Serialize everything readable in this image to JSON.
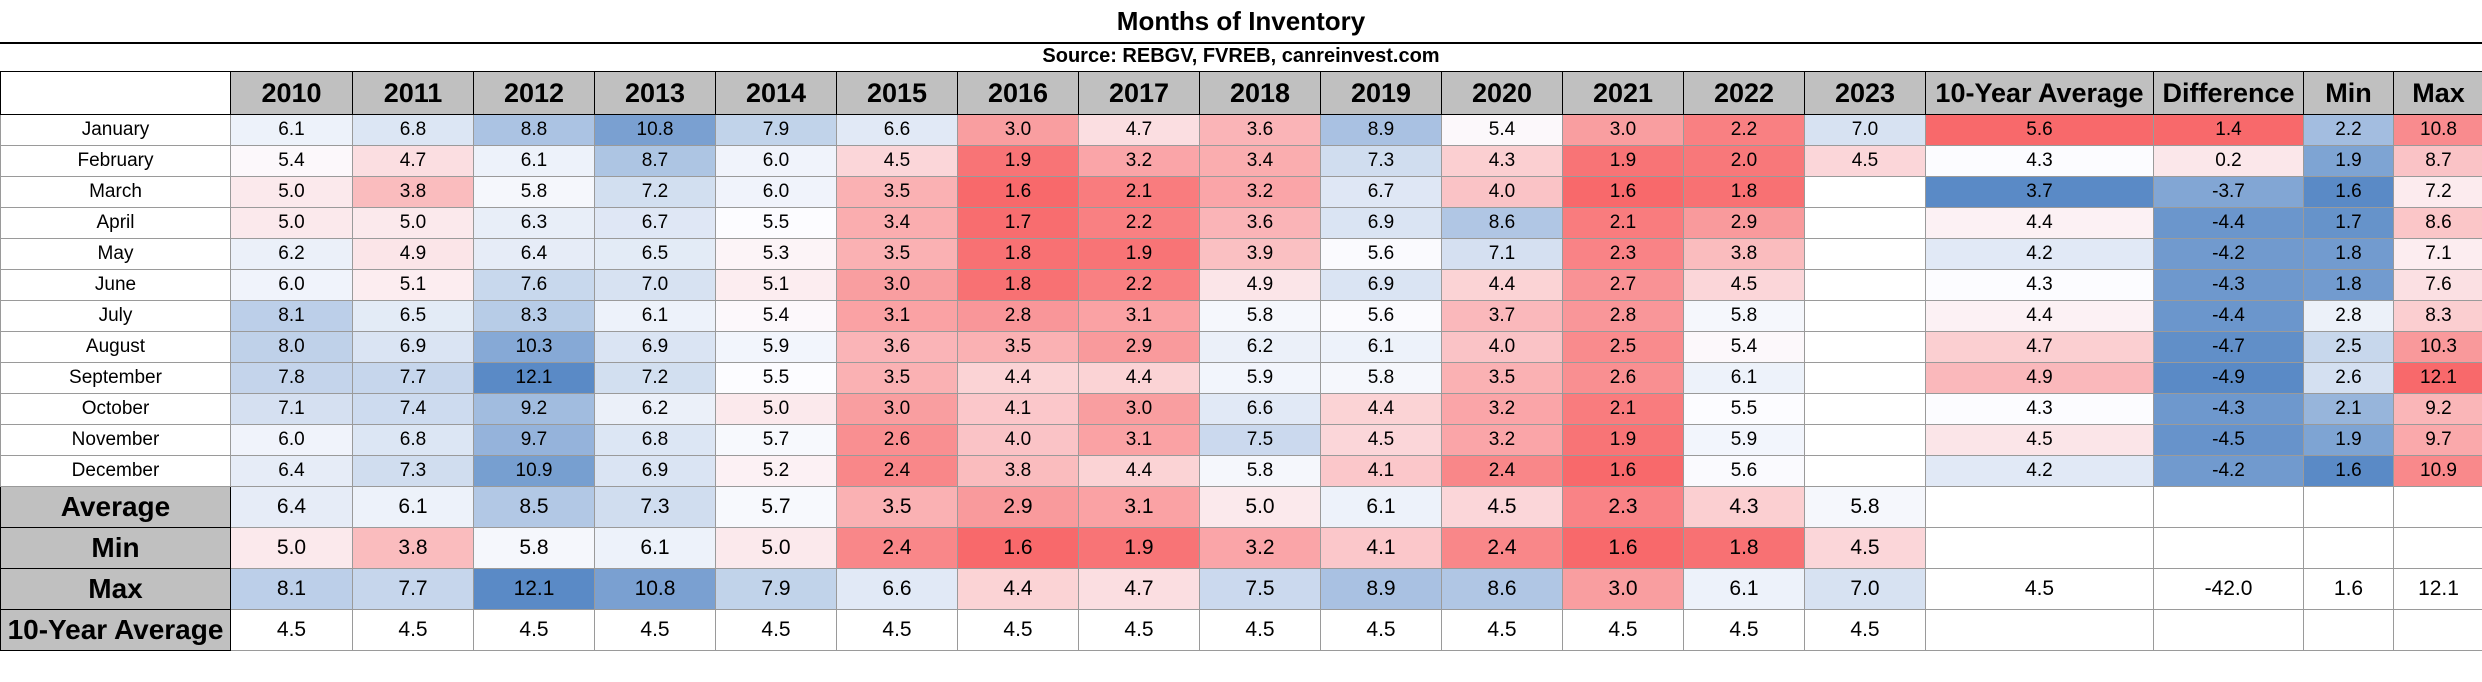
{
  "title": "Months of Inventory",
  "source": "Source: REBGV, FVREB, canreinvest.com",
  "headers": [
    "2010",
    "2011",
    "2012",
    "2013",
    "2014",
    "2015",
    "2016",
    "2017",
    "2018",
    "2019",
    "2020",
    "2021",
    "2022",
    "2023",
    "10-Year Average",
    "Difference",
    "Min",
    "Max"
  ],
  "rows": [
    {
      "label": "January",
      "values": [
        "6.1",
        "6.8",
        "8.8",
        "10.8",
        "7.9",
        "6.6",
        "3.0",
        "4.7",
        "3.6",
        "8.9",
        "5.4",
        "3.0",
        "2.2",
        "7.0",
        "5.6",
        "1.4",
        "2.2",
        "10.8"
      ]
    },
    {
      "label": "February",
      "values": [
        "5.4",
        "4.7",
        "6.1",
        "8.7",
        "6.0",
        "4.5",
        "1.9",
        "3.2",
        "3.4",
        "7.3",
        "4.3",
        "1.9",
        "2.0",
        "4.5",
        "4.3",
        "0.2",
        "1.9",
        "8.7"
      ]
    },
    {
      "label": "March",
      "values": [
        "5.0",
        "3.8",
        "5.8",
        "7.2",
        "6.0",
        "3.5",
        "1.6",
        "2.1",
        "3.2",
        "6.7",
        "4.0",
        "1.6",
        "1.8",
        "",
        "3.7",
        "-3.7",
        "1.6",
        "7.2"
      ]
    },
    {
      "label": "April",
      "values": [
        "5.0",
        "5.0",
        "6.3",
        "6.7",
        "5.5",
        "3.4",
        "1.7",
        "2.2",
        "3.6",
        "6.9",
        "8.6",
        "2.1",
        "2.9",
        "",
        "4.4",
        "-4.4",
        "1.7",
        "8.6"
      ]
    },
    {
      "label": "May",
      "values": [
        "6.2",
        "4.9",
        "6.4",
        "6.5",
        "5.3",
        "3.5",
        "1.8",
        "1.9",
        "3.9",
        "5.6",
        "7.1",
        "2.3",
        "3.8",
        "",
        "4.2",
        "-4.2",
        "1.8",
        "7.1"
      ]
    },
    {
      "label": "June",
      "values": [
        "6.0",
        "5.1",
        "7.6",
        "7.0",
        "5.1",
        "3.0",
        "1.8",
        "2.2",
        "4.9",
        "6.9",
        "4.4",
        "2.7",
        "4.5",
        "",
        "4.3",
        "-4.3",
        "1.8",
        "7.6"
      ]
    },
    {
      "label": "July",
      "values": [
        "8.1",
        "6.5",
        "8.3",
        "6.1",
        "5.4",
        "3.1",
        "2.8",
        "3.1",
        "5.8",
        "5.6",
        "3.7",
        "2.8",
        "5.8",
        "",
        "4.4",
        "-4.4",
        "2.8",
        "8.3"
      ]
    },
    {
      "label": "August",
      "values": [
        "8.0",
        "6.9",
        "10.3",
        "6.9",
        "5.9",
        "3.6",
        "3.5",
        "2.9",
        "6.2",
        "6.1",
        "4.0",
        "2.5",
        "5.4",
        "",
        "4.7",
        "-4.7",
        "2.5",
        "10.3"
      ]
    },
    {
      "label": "September",
      "values": [
        "7.8",
        "7.7",
        "12.1",
        "7.2",
        "5.5",
        "3.5",
        "4.4",
        "4.4",
        "5.9",
        "5.8",
        "3.5",
        "2.6",
        "6.1",
        "",
        "4.9",
        "-4.9",
        "2.6",
        "12.1"
      ]
    },
    {
      "label": "October",
      "values": [
        "7.1",
        "7.4",
        "9.2",
        "6.2",
        "5.0",
        "3.0",
        "4.1",
        "3.0",
        "6.6",
        "4.4",
        "3.2",
        "2.1",
        "5.5",
        "",
        "4.3",
        "-4.3",
        "2.1",
        "9.2"
      ]
    },
    {
      "label": "November",
      "values": [
        "6.0",
        "6.8",
        "9.7",
        "6.8",
        "5.7",
        "2.6",
        "4.0",
        "3.1",
        "7.5",
        "4.5",
        "3.2",
        "1.9",
        "5.9",
        "",
        "4.5",
        "-4.5",
        "1.9",
        "9.7"
      ]
    },
    {
      "label": "December",
      "values": [
        "6.4",
        "7.3",
        "10.9",
        "6.9",
        "5.2",
        "2.4",
        "3.8",
        "4.4",
        "5.8",
        "4.1",
        "2.4",
        "1.6",
        "5.6",
        "",
        "4.2",
        "-4.2",
        "1.6",
        "10.9"
      ]
    }
  ],
  "summary": [
    {
      "label": "Average",
      "values": [
        "6.4",
        "6.1",
        "8.5",
        "7.3",
        "5.7",
        "3.5",
        "2.9",
        "3.1",
        "5.0",
        "6.1",
        "4.5",
        "2.3",
        "4.3",
        "5.8",
        "",
        "",
        "",
        ""
      ]
    },
    {
      "label": "Min",
      "values": [
        "5.0",
        "3.8",
        "5.8",
        "6.1",
        "5.0",
        "2.4",
        "1.6",
        "1.9",
        "3.2",
        "4.1",
        "2.4",
        "1.6",
        "1.8",
        "4.5",
        "",
        "",
        "",
        ""
      ]
    },
    {
      "label": "Max",
      "values": [
        "8.1",
        "7.7",
        "12.1",
        "10.8",
        "7.9",
        "6.6",
        "4.4",
        "4.7",
        "7.5",
        "8.9",
        "8.6",
        "3.0",
        "6.1",
        "7.0",
        "4.5",
        "-42.0",
        "1.6",
        "12.1"
      ]
    }
  ],
  "ten_year_row": {
    "label": "10-Year Average",
    "values": [
      "4.5",
      "4.5",
      "4.5",
      "4.5",
      "4.5",
      "4.5",
      "4.5",
      "4.5",
      "4.5",
      "4.5",
      "4.5",
      "4.5",
      "4.5",
      "4.5",
      "",
      "",
      "",
      ""
    ]
  },
  "colors": {
    "scale_low": "#f8696b",
    "scale_mid": "#fcfcff",
    "scale_high": "#5a8ac6",
    "header_bg": "#c0c0c0"
  },
  "color_scale_center": 5.5
}
